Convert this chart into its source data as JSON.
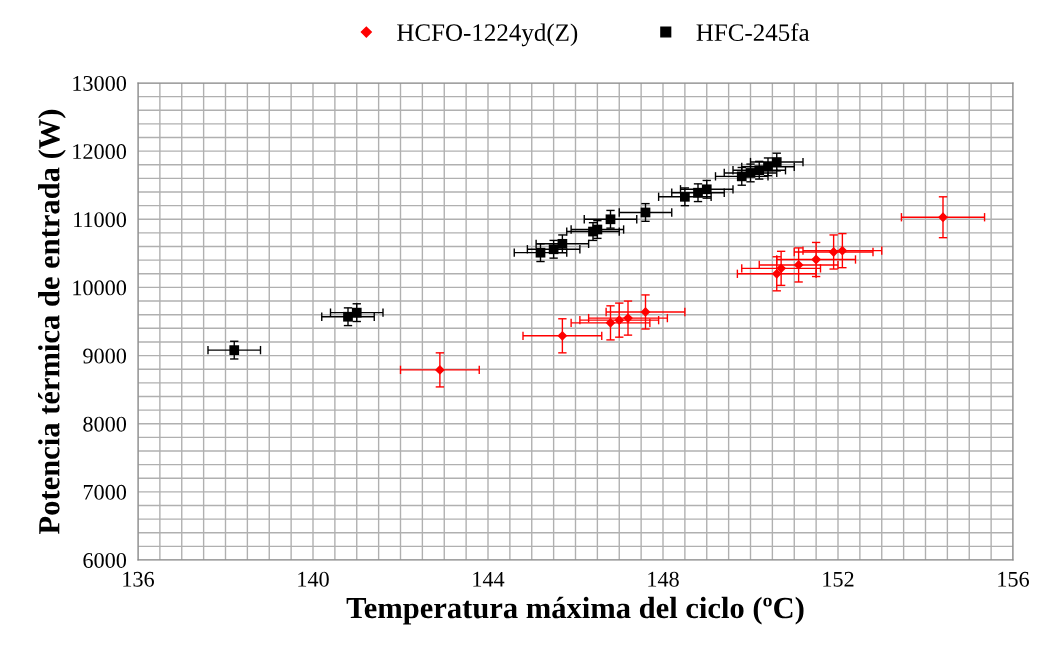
{
  "chart_data": {
    "type": "scatter",
    "xlabel": "Temperatura máxima del ciclo (ºC)",
    "ylabel": "Potencia térmica de entrada (W)",
    "series": [
      {
        "name": "HCFO-1224yd(Z)",
        "color": "#ff0000",
        "marker": "diamond",
        "x": [
          142.9,
          145.7,
          146.8,
          147.0,
          147.2,
          147.6,
          150.6,
          150.7,
          151.1,
          151.5,
          151.9,
          152.1,
          154.4
        ],
        "values": [
          8790,
          9290,
          9480,
          9520,
          9550,
          9640,
          10200,
          10280,
          10330,
          10410,
          10520,
          10540,
          11030
        ],
        "errors": [
          250,
          250,
          250,
          250,
          250,
          250,
          250,
          250,
          250,
          250,
          250,
          250,
          300
        ],
        "xerrors": [
          0.9,
          0.9,
          0.9,
          0.9,
          0.9,
          0.9,
          0.9,
          0.9,
          0.9,
          0.9,
          0.9,
          0.9,
          0.95
        ]
      },
      {
        "name": "HFC-245fa",
        "color": "#000000",
        "marker": "square",
        "x": [
          138.2,
          140.8,
          141.0,
          145.2,
          145.5,
          145.7,
          146.4,
          146.5,
          146.8,
          147.6,
          148.5,
          148.8,
          149.0,
          149.8,
          150.0,
          150.2,
          150.4,
          150.6
        ],
        "values": [
          9080,
          9570,
          9630,
          10510,
          10560,
          10640,
          10820,
          10850,
          11000,
          11100,
          11330,
          11390,
          11440,
          11630,
          11680,
          11720,
          11770,
          11840
        ],
        "errors": [
          130,
          130,
          130,
          130,
          130,
          130,
          130,
          130,
          130,
          130,
          130,
          130,
          130,
          130,
          130,
          130,
          130,
          130
        ],
        "xerrors": [
          0.6,
          0.6,
          0.6,
          0.6,
          0.6,
          0.6,
          0.6,
          0.6,
          0.6,
          0.6,
          0.6,
          0.6,
          0.6,
          0.6,
          0.6,
          0.6,
          0.6,
          0.6
        ]
      }
    ],
    "xlim": [
      136,
      156
    ],
    "ylim": [
      6000,
      13000
    ],
    "xticks": [
      136,
      {
        "value": 136.5,
        "label": null
      },
      {
        "value": 137,
        "label": null
      },
      {
        "value": 137.5,
        "label": null
      },
      {
        "value": 138,
        "label": null
      },
      {
        "value": 138.5,
        "label": null
      },
      {
        "value": 139,
        "label": null
      },
      {
        "value": 139.5,
        "label": null
      },
      140,
      {
        "value": 140.5,
        "label": null
      },
      {
        "value": 141,
        "label": null
      },
      {
        "value": 141.5,
        "label": null
      },
      {
        "value": 142,
        "label": null
      },
      {
        "value": 142.5,
        "label": null
      },
      {
        "value": 143,
        "label": null
      },
      {
        "value": 143.5,
        "label": null
      },
      144,
      {
        "value": 144.5,
        "label": null
      },
      {
        "value": 145,
        "label": null
      },
      {
        "value": 145.5,
        "label": null
      },
      {
        "value": 146,
        "label": null
      },
      {
        "value": 146.5,
        "label": null
      },
      {
        "value": 147,
        "label": null
      },
      {
        "value": 147.5,
        "label": null
      },
      148,
      {
        "value": 148.5,
        "label": null
      },
      {
        "value": 149,
        "label": null
      },
      {
        "value": 149.5,
        "label": null
      },
      {
        "value": 150,
        "label": null
      },
      {
        "value": 150.5,
        "label": null
      },
      {
        "value": 151,
        "label": null
      },
      {
        "value": 151.5,
        "label": null
      },
      152,
      {
        "value": 152.5,
        "label": null
      },
      {
        "value": 153,
        "label": null
      },
      {
        "value": 153.5,
        "label": null
      },
      {
        "value": 154,
        "label": null
      },
      {
        "value": 154.5,
        "label": null
      },
      {
        "value": 155,
        "label": null
      },
      {
        "value": 155.5,
        "label": null
      },
      156
    ],
    "yticks": [
      6000,
      {
        "value": 6200,
        "label": null
      },
      {
        "value": 6400,
        "label": null
      },
      {
        "value": 6600,
        "label": null
      },
      {
        "value": 6800,
        "label": null
      },
      7000,
      {
        "value": 7200,
        "label": null
      },
      {
        "value": 7400,
        "label": null
      },
      {
        "value": 7600,
        "label": null
      },
      {
        "value": 7800,
        "label": null
      },
      8000,
      {
        "value": 8200,
        "label": null
      },
      {
        "value": 8400,
        "label": null
      },
      {
        "value": 8600,
        "label": null
      },
      {
        "value": 8800,
        "label": null
      },
      9000,
      {
        "value": 9200,
        "label": null
      },
      {
        "value": 9400,
        "label": null
      },
      {
        "value": 9600,
        "label": null
      },
      {
        "value": 9800,
        "label": null
      },
      10000,
      {
        "value": 10200,
        "label": null
      },
      {
        "value": 10400,
        "label": null
      },
      {
        "value": 10600,
        "label": null
      },
      {
        "value": 10800,
        "label": null
      },
      11000,
      {
        "value": 11200,
        "label": null
      },
      {
        "value": 11400,
        "label": null
      },
      {
        "value": 11600,
        "label": null
      },
      {
        "value": 11800,
        "label": null
      },
      12000,
      {
        "value": 12200,
        "label": null
      },
      {
        "value": 12400,
        "label": null
      },
      {
        "value": 12600,
        "label": null
      },
      {
        "value": 12800,
        "label": null
      },
      13000
    ],
    "grid": true,
    "legend": "top"
  }
}
